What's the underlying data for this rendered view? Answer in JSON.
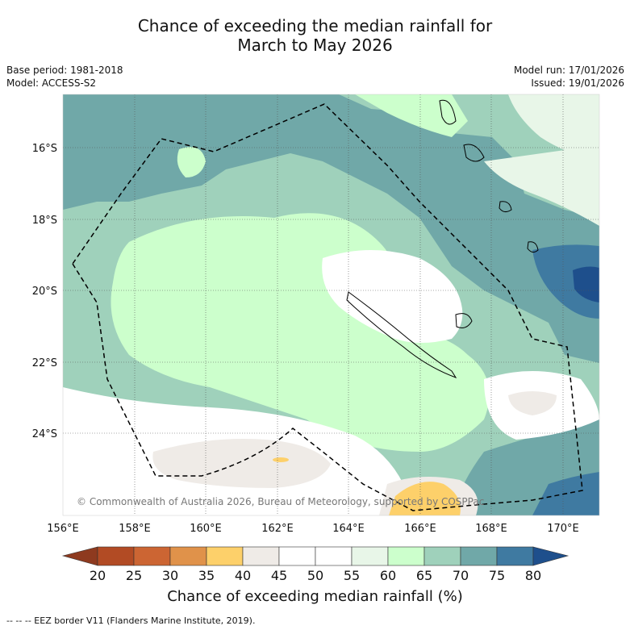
{
  "title_line1": "Chance of exceeding the median rainfall for",
  "title_line2": "March to May 2026",
  "base_period": "Base period: 1981-2018",
  "model": "Model: ACCESS-S2",
  "model_run": "Model run: 17/01/2026",
  "issued": "Issued: 19/01/2026",
  "copyright": "© Commonwealth of Australia 2026, Bureau of Meteorology, supported by COSPPac",
  "lat_labels": [
    "16°S",
    "18°S",
    "20°S",
    "22°S",
    "24°S"
  ],
  "lon_labels": [
    "156°E",
    "158°E",
    "160°E",
    "162°E",
    "164°E",
    "166°E",
    "168°E",
    "170°E"
  ],
  "colorbar": {
    "ticks": [
      "20",
      "25",
      "30",
      "35",
      "40",
      "45",
      "50",
      "55",
      "60",
      "65",
      "70",
      "75",
      "80"
    ],
    "colors": [
      "#8e3a1f",
      "#b24b24",
      "#cc6533",
      "#e0924a",
      "#fdd06a",
      "#efebe7",
      "#ffffff",
      "#ffffff",
      "#e8f6e8",
      "#ccffcc",
      "#9fd1bb",
      "#70a8a8",
      "#3f7aa1",
      "#1e4f8c"
    ],
    "label": "Chance of exceeding median rainfall (%)"
  },
  "footer": "-- -- -- EEZ border V11 (Flanders Marine Institute, 2019)."
}
